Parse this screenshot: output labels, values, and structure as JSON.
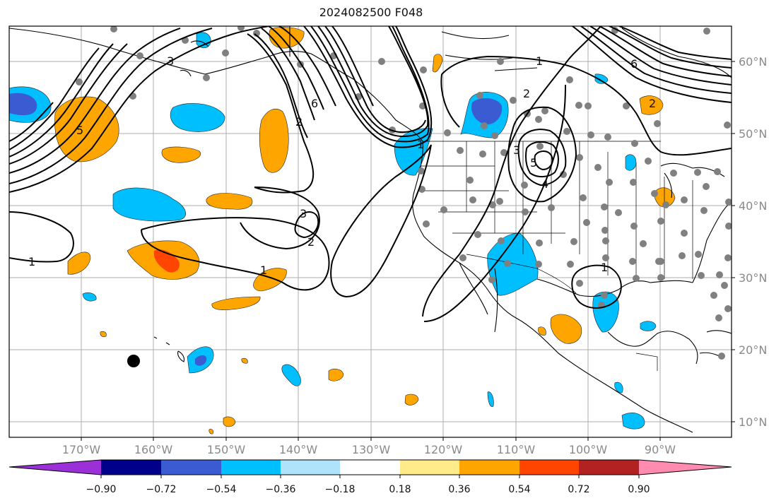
{
  "title": "2024082500 F048",
  "map": {
    "longitude_ticks": [
      "170°W",
      "160°W",
      "150°W",
      "140°W",
      "130°W",
      "120°W",
      "110°W",
      "100°W",
      "90°W"
    ],
    "latitude_ticks": [
      "10°N",
      "20°N",
      "30°N",
      "40°N",
      "50°N",
      "60°N"
    ],
    "contour_labels": [
      "1",
      "1",
      "1",
      "1",
      "1",
      "2",
      "2",
      "2",
      "2",
      "3",
      "3",
      "3",
      "4",
      "5",
      "5",
      "6",
      "6"
    ]
  },
  "colorbar": {
    "ticks": [
      "−0.90",
      "−0.72",
      "−0.54",
      "−0.36",
      "−0.18",
      "0.18",
      "0.36",
      "0.54",
      "0.72",
      "0.90"
    ],
    "colors": {
      "below_-0.90": "#9b30d9",
      "-0.90_-0.72": "#00008b",
      "-0.72_-0.54": "#3a5bd1",
      "-0.54_-0.36": "#00bfff",
      "-0.36_-0.18": "#aee3fb",
      "-0.18_0.18": "#ffffff",
      "0.18_0.36": "#ffeb8a",
      "0.36_0.54": "#ffa500",
      "0.54_0.72": "#ff4500",
      "0.72_0.90": "#b22222",
      "above_0.90": "#ff8cb0"
    }
  }
}
